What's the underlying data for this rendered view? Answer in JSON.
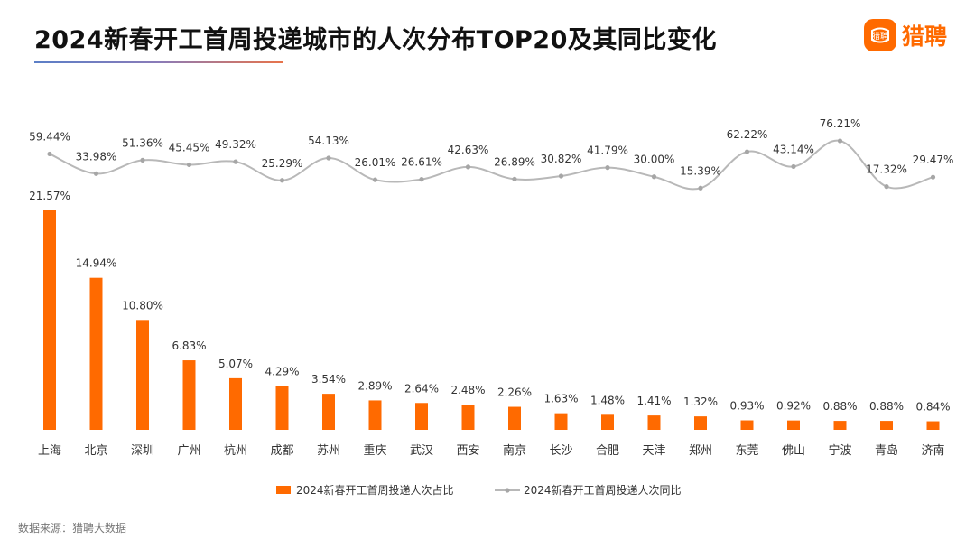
{
  "title": "2024新春开工首周投递城市的人次分布TOP20及其同比变化",
  "brand": {
    "name": "猎聘",
    "mark_text": "猎聘",
    "color": "#ff6a00"
  },
  "source": "数据来源：猎聘大数据",
  "colors": {
    "bar": "#ff6a00",
    "line": "#b8b8b8",
    "marker": "#a6a6a6"
  },
  "chart_data": {
    "type": "bar",
    "categories": [
      "上海",
      "北京",
      "深圳",
      "广州",
      "杭州",
      "成都",
      "苏州",
      "重庆",
      "武汉",
      "西安",
      "南京",
      "长沙",
      "合肥",
      "天津",
      "郑州",
      "东莞",
      "佛山",
      "宁波",
      "青岛",
      "济南"
    ],
    "series": [
      {
        "name": "2024新春开工首周投递人次占比",
        "type": "bar",
        "values": [
          21.57,
          14.94,
          10.8,
          6.83,
          5.07,
          4.29,
          3.54,
          2.89,
          2.64,
          2.48,
          2.26,
          1.63,
          1.48,
          1.41,
          1.32,
          0.93,
          0.92,
          0.88,
          0.88,
          0.84
        ],
        "labels": [
          "21.57%",
          "14.94%",
          "10.80%",
          "6.83%",
          "5.07%",
          "4.29%",
          "3.54%",
          "2.89%",
          "2.64%",
          "2.48%",
          "2.26%",
          "1.63%",
          "1.48%",
          "1.41%",
          "1.32%",
          "0.93%",
          "0.92%",
          "0.88%",
          "0.88%",
          "0.84%"
        ]
      },
      {
        "name": "2024新春开工首周投递人次同比",
        "type": "line",
        "values": [
          59.44,
          33.98,
          51.36,
          45.45,
          49.32,
          25.29,
          54.13,
          26.01,
          26.61,
          42.63,
          26.89,
          30.82,
          41.79,
          30.0,
          15.39,
          62.22,
          43.14,
          76.21,
          17.32,
          29.47
        ],
        "labels": [
          "59.44%",
          "33.98%",
          "51.36%",
          "45.45%",
          "49.32%",
          "25.29%",
          "54.13%",
          "26.01%",
          "26.61%",
          "42.63%",
          "26.89%",
          "30.82%",
          "41.79%",
          "30.00%",
          "15.39%",
          "62.22%",
          "43.14%",
          "76.21%",
          "17.32%",
          "29.47%"
        ]
      }
    ],
    "legend_position": "bottom",
    "grid": false
  }
}
